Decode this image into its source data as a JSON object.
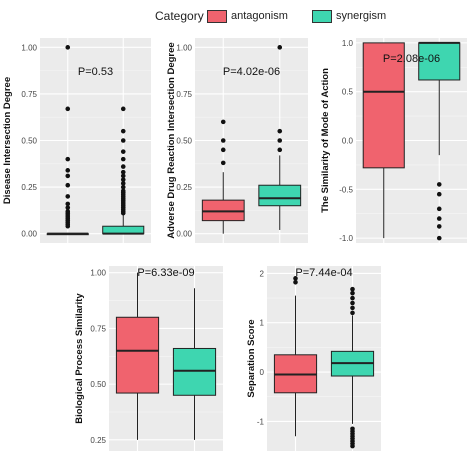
{
  "legend": {
    "title": "Category",
    "items": [
      {
        "label": "antagonism",
        "color": "#F0636E"
      },
      {
        "label": "synergism",
        "color": "#3ED6B0"
      }
    ]
  },
  "chart_data": [
    {
      "type": "box",
      "ylabel": "Disease Intersection Degree",
      "pvalue": "P=0.53",
      "ylim": [
        -0.05,
        1.05
      ],
      "yticks": [
        0,
        0.25,
        0.5,
        0.75,
        1
      ],
      "ytick_labels": [
        "0.00",
        "0.25",
        "0.50",
        "0.75",
        "1.00"
      ],
      "boxes": [
        {
          "category": "antagonism",
          "min": 0,
          "q1": 0,
          "median": 0,
          "q3": 0,
          "max": 0,
          "outliers": [
            0.04,
            0.05,
            0.06,
            0.07,
            0.08,
            0.09,
            0.1,
            0.11,
            0.12,
            0.14,
            0.16,
            0.2,
            0.26,
            0.31,
            0.34,
            0.4,
            0.67,
            1.0
          ]
        },
        {
          "category": "synergism",
          "min": 0,
          "q1": 0,
          "median": 0,
          "q3": 0.04,
          "max": 0.1,
          "outliers": [
            0.11,
            0.12,
            0.13,
            0.14,
            0.15,
            0.16,
            0.17,
            0.18,
            0.19,
            0.2,
            0.21,
            0.22,
            0.23,
            0.25,
            0.27,
            0.29,
            0.31,
            0.33,
            0.36,
            0.4,
            0.44,
            0.5,
            0.55,
            0.67
          ]
        }
      ]
    },
    {
      "type": "box",
      "ylabel": "Adverse Drug Reaction Intersection Degree",
      "pvalue": "P=4.02e-06",
      "ylim": [
        -0.05,
        1.05
      ],
      "yticks": [
        0,
        0.25,
        0.5,
        0.75,
        1
      ],
      "ytick_labels": [
        "0.00",
        "0.25",
        "0.50",
        "0.75",
        "1.00"
      ],
      "boxes": [
        {
          "category": "antagonism",
          "min": 0,
          "q1": 0.07,
          "median": 0.12,
          "q3": 0.18,
          "max": 0.33,
          "outliers": [
            0.38,
            0.45,
            0.5,
            0.6
          ]
        },
        {
          "category": "synergism",
          "min": 0.02,
          "q1": 0.15,
          "median": 0.19,
          "q3": 0.26,
          "max": 0.42,
          "outliers": [
            0.45,
            0.5,
            0.55,
            1.0
          ]
        }
      ]
    },
    {
      "type": "box",
      "ylabel": "The Similarity of Mode of Action",
      "pvalue": "P=2.08e-06",
      "ylim": [
        -1.05,
        1.05
      ],
      "yticks": [
        -1,
        -0.5,
        0,
        0.5,
        1
      ],
      "ytick_labels": [
        "-1.0",
        "-0.5",
        "0.0",
        "0.5",
        "1.0"
      ],
      "boxes": [
        {
          "category": "antagonism",
          "min": -1.0,
          "q1": -0.28,
          "median": 0.5,
          "q3": 1.0,
          "max": 1.0,
          "outliers": []
        },
        {
          "category": "synergism",
          "min": -0.15,
          "q1": 0.62,
          "median": 1.0,
          "q3": 1.0,
          "max": 1.0,
          "outliers": [
            -0.45,
            -0.55,
            -0.7,
            -0.8,
            -0.88,
            -1.0
          ]
        }
      ]
    },
    {
      "type": "box",
      "ylabel": "Biological Process Similarity",
      "pvalue": "P=6.33e-09",
      "ylim": [
        0.2,
        1.03
      ],
      "yticks": [
        0.25,
        0.5,
        0.75,
        1
      ],
      "ytick_labels": [
        "0.25",
        "0.50",
        "0.75",
        "1.00"
      ],
      "boxes": [
        {
          "category": "antagonism",
          "min": 0.25,
          "q1": 0.46,
          "median": 0.65,
          "q3": 0.8,
          "max": 1.0,
          "outliers": []
        },
        {
          "category": "synergism",
          "min": 0.25,
          "q1": 0.45,
          "median": 0.56,
          "q3": 0.66,
          "max": 0.93,
          "outliers": []
        }
      ]
    },
    {
      "type": "box",
      "ylabel": "Separation Score",
      "pvalue": "P=7.44e-04",
      "ylim": [
        -1.6,
        2.15
      ],
      "yticks": [
        -1,
        0,
        1,
        2
      ],
      "ytick_labels": [
        "-1",
        "0",
        "1",
        "2"
      ],
      "boxes": [
        {
          "category": "antagonism",
          "min": -1.3,
          "q1": -0.42,
          "median": -0.05,
          "q3": 0.35,
          "max": 1.55,
          "outliers": [
            1.82,
            1.9
          ]
        },
        {
          "category": "synergism",
          "min": -1.05,
          "q1": -0.08,
          "median": 0.18,
          "q3": 0.42,
          "max": 1.15,
          "outliers": [
            1.2,
            1.3,
            1.4,
            1.5,
            1.6,
            1.68,
            -1.15,
            -1.2,
            -1.25,
            -1.3,
            -1.35,
            -1.4,
            -1.45,
            -1.5
          ]
        }
      ]
    }
  ]
}
